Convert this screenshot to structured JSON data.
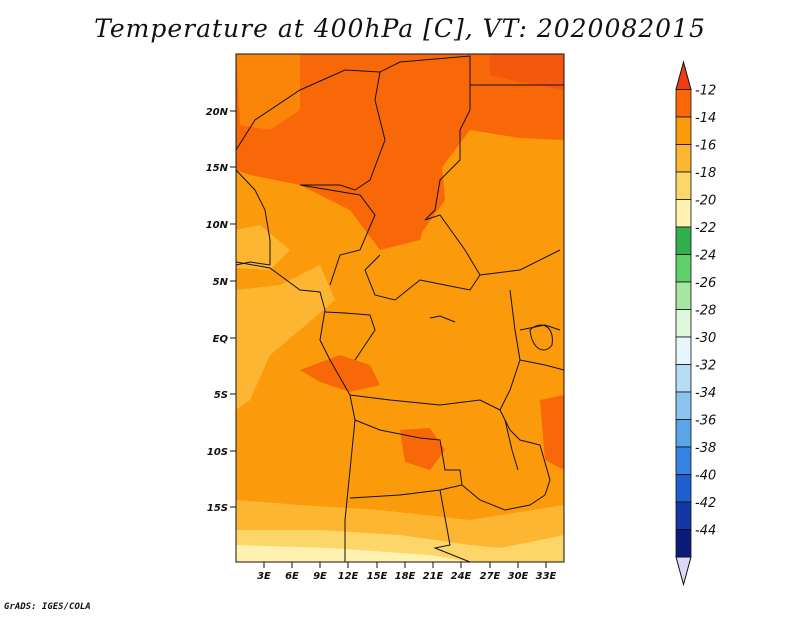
{
  "title": "Temperature at 400hPa [C], VT: 2020082015",
  "footer": "GrADS: IGES/COLA",
  "map": {
    "lat_labels": [
      "20N",
      "15N",
      "10N",
      "5N",
      "EQ",
      "5S",
      "10S",
      "15S"
    ],
    "lon_labels": [
      "3E",
      "6E",
      "9E",
      "12E",
      "15E",
      "18E",
      "21E",
      "24E",
      "27E",
      "30E",
      "33E"
    ]
  },
  "colorbar": {
    "labels": [
      "-12",
      "-14",
      "-16",
      "-18",
      "-20",
      "-22",
      "-24",
      "-26",
      "-28",
      "-30",
      "-32",
      "-34",
      "-36",
      "-38",
      "-40",
      "-42",
      "-44"
    ],
    "colors": [
      "#f03c14",
      "#f86808",
      "#fb9a0a",
      "#fdb632",
      "#fdd669",
      "#fff1b0",
      "#2fb04a",
      "#5fd06a",
      "#a5e6a3",
      "#dcf7dc",
      "#e8f5fc",
      "#b8dcf5",
      "#8cc4f0",
      "#5aa4ea",
      "#3584e4",
      "#1f5ed0",
      "#1338a6",
      "#0b1a7a",
      "#dcd8f8"
    ]
  },
  "colors": {
    "base_orange": "#fb9a0a",
    "dark_orange": "#f86808",
    "light_orange": "#fdb632",
    "pale_yellow": "#fdd669",
    "border": "#111111"
  }
}
